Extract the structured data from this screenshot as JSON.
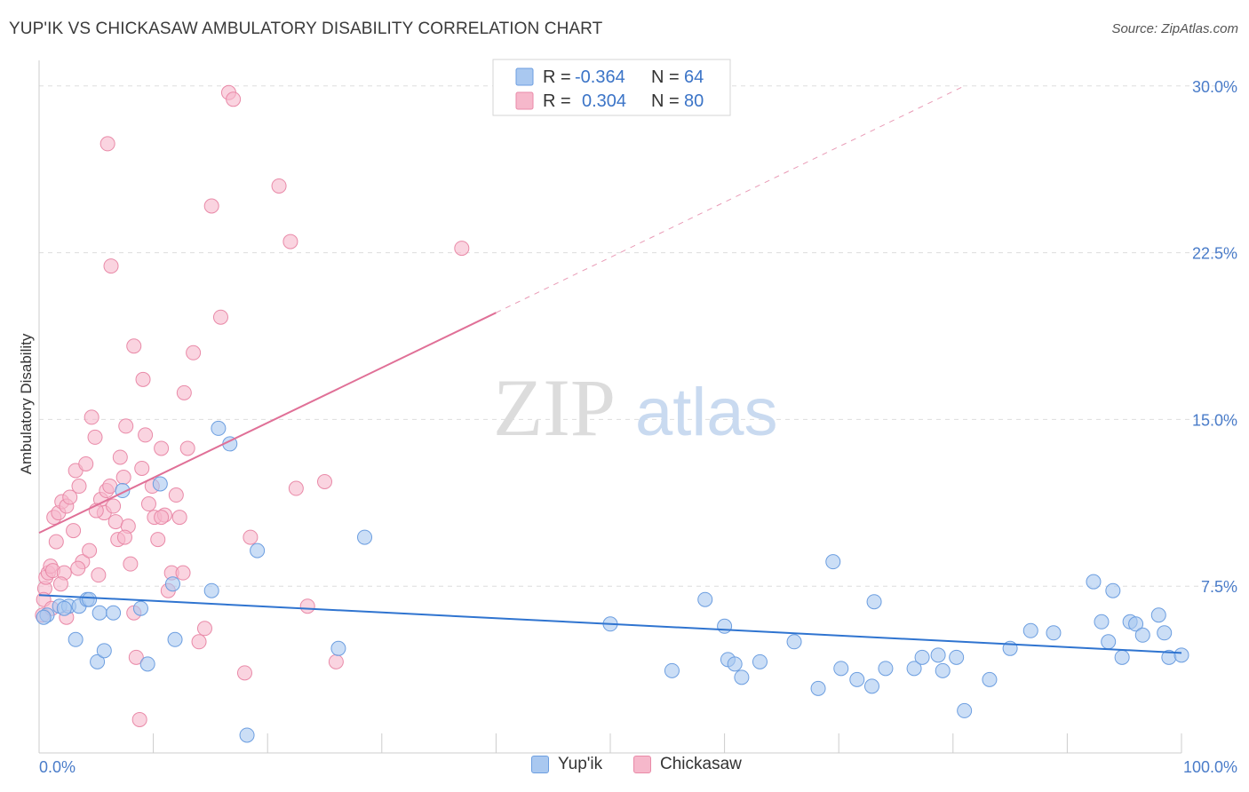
{
  "title": "YUP'IK VS CHICKASAW AMBULATORY DISABILITY CORRELATION CHART",
  "source": "Source: ZipAtlas.com",
  "watermark": {
    "zip": "ZIP",
    "atlas": "atlas"
  },
  "legend": {
    "rows": [
      {
        "r_label": "R =",
        "r_value": "-0.364",
        "n_label": "N =",
        "n_value": "64"
      },
      {
        "r_label": "R =",
        "r_value": "0.304",
        "n_label": "N =",
        "n_value": "80"
      }
    ]
  },
  "bottom_legend": {
    "series1": "Yup'ik",
    "series2": "Chickasaw"
  },
  "colors": {
    "blue_fill": "#a9c8f0",
    "blue_stroke": "#6c9ee0",
    "blue_line": "#2f74d0",
    "pink_fill": "#f6b8cb",
    "pink_stroke": "#e98aa8",
    "pink_line": "#e07097",
    "grid": "#dddddd",
    "tick_text": "#4a7cc9"
  },
  "chart_data": {
    "type": "scatter",
    "title": "YUP'IK VS CHICKASAW AMBULATORY DISABILITY CORRELATION CHART",
    "xlabel": "",
    "ylabel": "Ambulatory Disability",
    "xlim": [
      0,
      100
    ],
    "ylim": [
      0,
      30
    ],
    "x_tick_labels": [
      "0.0%",
      "100.0%"
    ],
    "y_ticks": [
      7.5,
      15.0,
      22.5,
      30.0
    ],
    "y_tick_labels": [
      "7.5%",
      "15.0%",
      "22.5%",
      "30.0%"
    ],
    "grid": true,
    "legend_position": "top-center",
    "series": [
      {
        "name": "Yup'ik",
        "color": "#6c9ee0",
        "trend": {
          "x": [
            0,
            100
          ],
          "y": [
            7.1,
            4.5
          ],
          "dashed_from": null
        },
        "points": [
          [
            0.7,
            6.2
          ],
          [
            1.8,
            6.6
          ],
          [
            2.6,
            6.6
          ],
          [
            3.5,
            6.6
          ],
          [
            3.2,
            5.1
          ],
          [
            4.2,
            6.9
          ],
          [
            4.4,
            6.9
          ],
          [
            5.1,
            4.1
          ],
          [
            5.3,
            6.3
          ],
          [
            5.7,
            4.6
          ],
          [
            6.5,
            6.3
          ],
          [
            7.3,
            11.8
          ],
          [
            8.9,
            6.5
          ],
          [
            9.5,
            4.0
          ],
          [
            10.6,
            12.1
          ],
          [
            11.7,
            7.6
          ],
          [
            11.9,
            5.1
          ],
          [
            15.1,
            7.3
          ],
          [
            15.7,
            14.6
          ],
          [
            16.7,
            13.9
          ],
          [
            18.2,
            0.8
          ],
          [
            19.1,
            9.1
          ],
          [
            26.2,
            4.7
          ],
          [
            28.5,
            9.7
          ],
          [
            50.0,
            5.8
          ],
          [
            55.4,
            3.7
          ],
          [
            58.3,
            6.9
          ],
          [
            60.0,
            5.7
          ],
          [
            60.3,
            4.2
          ],
          [
            60.9,
            4.0
          ],
          [
            61.5,
            3.4
          ],
          [
            63.1,
            4.1
          ],
          [
            66.1,
            5.0
          ],
          [
            68.2,
            2.9
          ],
          [
            69.5,
            8.6
          ],
          [
            70.2,
            3.8
          ],
          [
            71.6,
            3.3
          ],
          [
            73.1,
            6.8
          ],
          [
            72.9,
            3.0
          ],
          [
            74.1,
            3.8
          ],
          [
            76.6,
            3.8
          ],
          [
            77.3,
            4.3
          ],
          [
            79.1,
            3.7
          ],
          [
            78.7,
            4.4
          ],
          [
            80.3,
            4.3
          ],
          [
            81.0,
            1.9
          ],
          [
            83.2,
            3.3
          ],
          [
            85.0,
            4.7
          ],
          [
            86.8,
            5.5
          ],
          [
            88.8,
            5.4
          ],
          [
            92.3,
            7.7
          ],
          [
            93.0,
            5.9
          ],
          [
            93.6,
            5.0
          ],
          [
            94.0,
            7.3
          ],
          [
            94.8,
            4.3
          ],
          [
            95.5,
            5.9
          ],
          [
            96.0,
            5.8
          ],
          [
            96.6,
            5.3
          ],
          [
            98.0,
            6.2
          ],
          [
            98.5,
            5.4
          ],
          [
            98.9,
            4.3
          ],
          [
            100.0,
            4.4
          ],
          [
            0.4,
            6.1
          ],
          [
            2.2,
            6.5
          ]
        ]
      },
      {
        "name": "Chickasaw",
        "color": "#e98aa8",
        "trend": {
          "x": [
            0,
            40,
            81
          ],
          "y": [
            9.9,
            19.8,
            30.0
          ],
          "dashed_from": 40
        },
        "points": [
          [
            0.3,
            6.2
          ],
          [
            0.5,
            7.4
          ],
          [
            0.6,
            7.9
          ],
          [
            0.8,
            8.1
          ],
          [
            1.0,
            8.4
          ],
          [
            1.2,
            8.2
          ],
          [
            1.3,
            10.6
          ],
          [
            1.5,
            9.5
          ],
          [
            1.7,
            10.8
          ],
          [
            2.0,
            11.3
          ],
          [
            2.2,
            8.1
          ],
          [
            2.4,
            11.1
          ],
          [
            2.7,
            11.5
          ],
          [
            3.0,
            10.0
          ],
          [
            3.2,
            12.7
          ],
          [
            3.5,
            12.0
          ],
          [
            3.8,
            8.6
          ],
          [
            4.1,
            13.0
          ],
          [
            4.4,
            9.1
          ],
          [
            4.6,
            15.1
          ],
          [
            4.9,
            14.2
          ],
          [
            5.2,
            8.0
          ],
          [
            5.4,
            11.4
          ],
          [
            5.7,
            10.8
          ],
          [
            5.9,
            11.8
          ],
          [
            6.2,
            12.0
          ],
          [
            6.5,
            11.1
          ],
          [
            6.7,
            10.4
          ],
          [
            6.9,
            9.6
          ],
          [
            7.1,
            13.3
          ],
          [
            7.4,
            12.4
          ],
          [
            7.6,
            14.7
          ],
          [
            7.8,
            10.2
          ],
          [
            8.0,
            8.5
          ],
          [
            8.3,
            6.3
          ],
          [
            8.5,
            4.3
          ],
          [
            8.8,
            1.5
          ],
          [
            9.0,
            12.8
          ],
          [
            9.3,
            14.3
          ],
          [
            9.6,
            11.2
          ],
          [
            9.9,
            12.0
          ],
          [
            10.1,
            10.6
          ],
          [
            10.4,
            9.6
          ],
          [
            10.7,
            13.7
          ],
          [
            11.0,
            10.7
          ],
          [
            11.3,
            7.3
          ],
          [
            11.6,
            8.1
          ],
          [
            12.0,
            11.6
          ],
          [
            12.3,
            10.6
          ],
          [
            12.7,
            16.2
          ],
          [
            13.0,
            13.7
          ],
          [
            13.5,
            18.0
          ],
          [
            14.0,
            5.0
          ],
          [
            14.5,
            5.6
          ],
          [
            15.1,
            24.6
          ],
          [
            15.9,
            19.6
          ],
          [
            16.6,
            29.7
          ],
          [
            17.0,
            29.4
          ],
          [
            18.0,
            3.6
          ],
          [
            18.5,
            9.7
          ],
          [
            21.0,
            25.5
          ],
          [
            22.0,
            23.0
          ],
          [
            22.5,
            11.9
          ],
          [
            23.5,
            6.6
          ],
          [
            25.0,
            12.2
          ],
          [
            26.0,
            4.1
          ],
          [
            37.0,
            22.7
          ],
          [
            6.0,
            27.4
          ],
          [
            6.3,
            21.9
          ],
          [
            8.3,
            18.3
          ],
          [
            9.1,
            16.8
          ],
          [
            10.7,
            10.6
          ],
          [
            12.6,
            8.1
          ],
          [
            7.5,
            9.7
          ],
          [
            5.0,
            10.9
          ],
          [
            3.4,
            8.3
          ],
          [
            1.9,
            7.6
          ],
          [
            2.4,
            6.1
          ],
          [
            0.4,
            6.9
          ],
          [
            1.1,
            6.5
          ]
        ]
      }
    ]
  }
}
